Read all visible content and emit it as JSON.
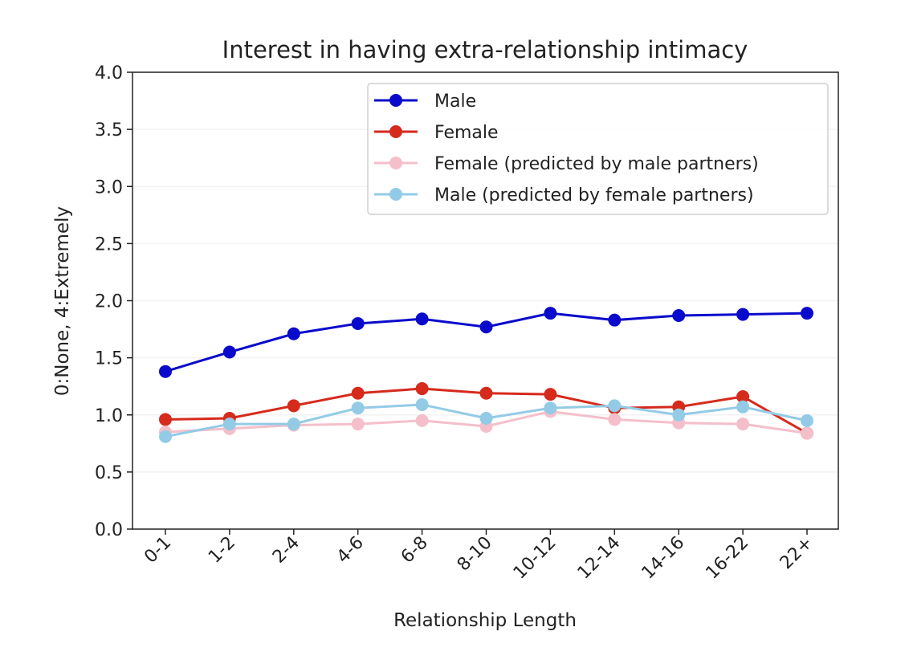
{
  "chart_data": {
    "type": "line",
    "title": "Interest in having extra-relationship intimacy",
    "xlabel": "Relationship Length",
    "ylabel": "0:None, 4:Extremely",
    "categories": [
      "0-1",
      "1-2",
      "2-4",
      "4-6",
      "6-8",
      "8-10",
      "10-12",
      "12-14",
      "14-16",
      "16-22",
      "22+"
    ],
    "ylim": [
      0,
      4
    ],
    "yticks": [
      "0.0",
      "0.5",
      "1.0",
      "1.5",
      "2.0",
      "2.5",
      "3.0",
      "3.5",
      "4.0"
    ],
    "grid": true,
    "legend_position": "upper-right",
    "series": [
      {
        "name": "Male",
        "color": "#0a0acc",
        "values": [
          1.38,
          1.55,
          1.71,
          1.8,
          1.84,
          1.77,
          1.89,
          1.83,
          1.87,
          1.88,
          1.89
        ]
      },
      {
        "name": "Female",
        "color": "#d62a1c",
        "values": [
          0.96,
          0.97,
          1.08,
          1.19,
          1.23,
          1.19,
          1.18,
          1.06,
          1.07,
          1.16,
          0.84
        ]
      },
      {
        "name": "Female (predicted by male partners)",
        "color": "#f4bfcb",
        "values": [
          0.85,
          0.88,
          0.91,
          0.92,
          0.95,
          0.9,
          1.03,
          0.96,
          0.93,
          0.92,
          0.84
        ]
      },
      {
        "name": "Male (predicted by female partners)",
        "color": "#93cbe6",
        "values": [
          0.81,
          0.92,
          0.92,
          1.06,
          1.09,
          0.97,
          1.06,
          1.08,
          1.0,
          1.07,
          0.95
        ]
      }
    ]
  }
}
